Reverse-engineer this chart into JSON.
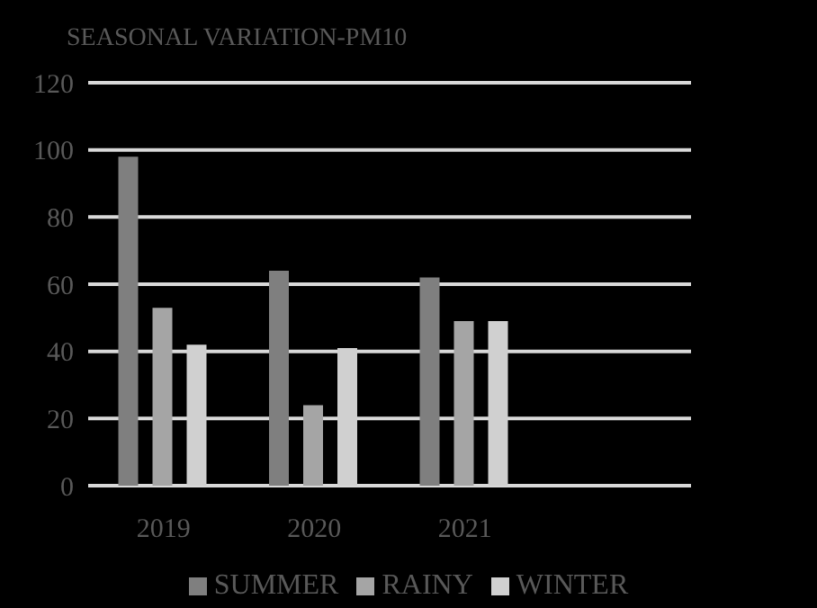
{
  "chart_data": {
    "type": "bar",
    "title": "SEASONAL VARIATION-PM10",
    "categories": [
      "2019",
      "2020",
      "2021",
      null
    ],
    "series": [
      {
        "name": "SUMMER",
        "color": "#7f7f7f",
        "values": [
          98,
          64,
          62,
          null
        ]
      },
      {
        "name": "RAINY",
        "color": "#a5a5a5",
        "values": [
          53,
          24,
          49,
          null
        ]
      },
      {
        "name": "WINTER",
        "color": "#d0d0d0",
        "values": [
          42,
          41,
          49,
          null
        ]
      }
    ],
    "ylim": [
      0,
      120
    ],
    "yticks": [
      0,
      20,
      40,
      60,
      80,
      100,
      120
    ],
    "grid": "y",
    "legend": "bottom"
  }
}
